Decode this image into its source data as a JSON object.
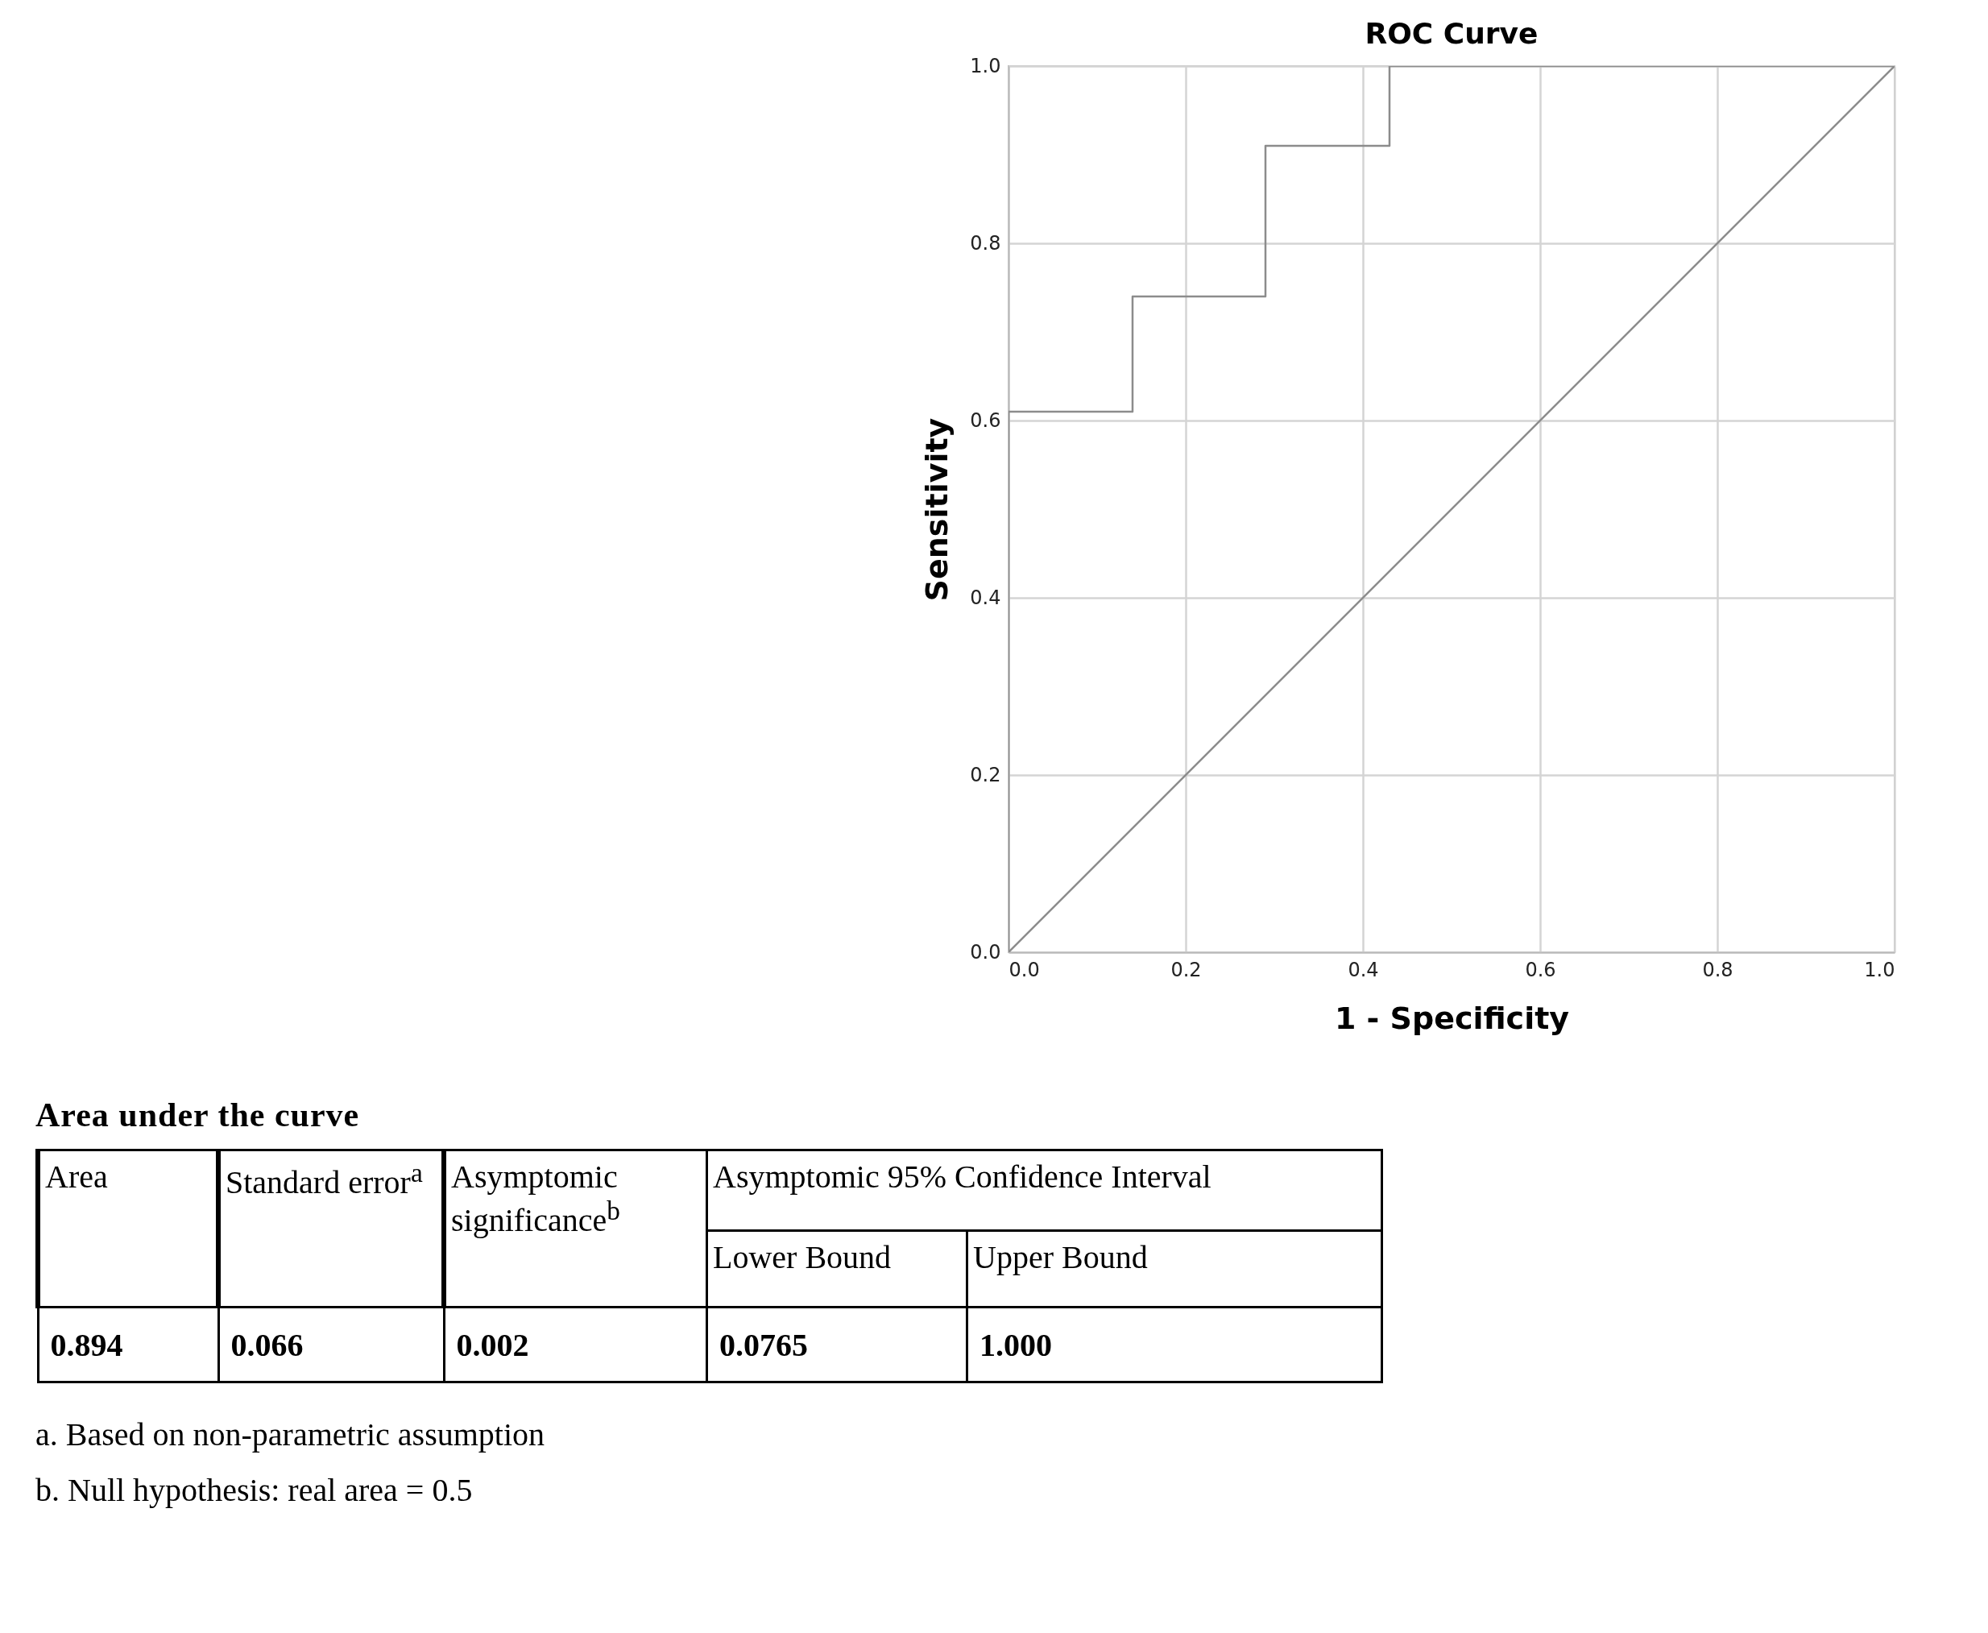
{
  "chart_data": [
    {
      "type": "step",
      "title": "ROC Curve",
      "xlabel": "1 - Specificity",
      "ylabel": "Sensitivity",
      "xlim": [
        0,
        1
      ],
      "ylim": [
        0,
        1
      ],
      "xticks": [
        {
          "value": 0,
          "label": "0.0"
        },
        {
          "value": 0.2,
          "label": "0.2"
        },
        {
          "value": 0.4,
          "label": "0.4"
        },
        {
          "value": 0.6,
          "label": "0.6"
        },
        {
          "value": 0.8,
          "label": "0.8"
        },
        {
          "value": 1,
          "label": "1.0"
        }
      ],
      "yticks": [
        {
          "value": 0,
          "label": "0.0"
        },
        {
          "value": 0.2,
          "label": "0.2"
        },
        {
          "value": 0.4,
          "label": "0.4"
        },
        {
          "value": 0.6,
          "label": "0.6"
        },
        {
          "value": 0.8,
          "label": "0.8"
        },
        {
          "value": 1,
          "label": "1.0"
        }
      ],
      "grid": true,
      "series": [
        {
          "type": "step",
          "color": "#8c8c8c",
          "x": [
            0,
            0,
            0.14,
            0.29,
            0.43,
            1
          ],
          "values": [
            0,
            0.61,
            0.74,
            0.91,
            1,
            1
          ]
        },
        {
          "type": "line",
          "color": "#8c8c8c",
          "x": [
            0,
            1
          ],
          "values": [
            0,
            1
          ]
        }
      ]
    },
    {
      "type": "other",
      "title": "Area under the curve",
      "annotations": [
        "Area",
        "Standard error$^{a}$",
        "Asymptomic significance$^{b}$",
        "Asymptomic 95% Confidence Interval",
        "Lower Bound",
        "Upper Bound",
        "0.894",
        "0.066",
        "0.002",
        "0.0765",
        "1.000",
        "a. Based on non-parametric assumption",
        "b. Null hypothesis: real area = 0.5"
      ]
    }
  ]
}
